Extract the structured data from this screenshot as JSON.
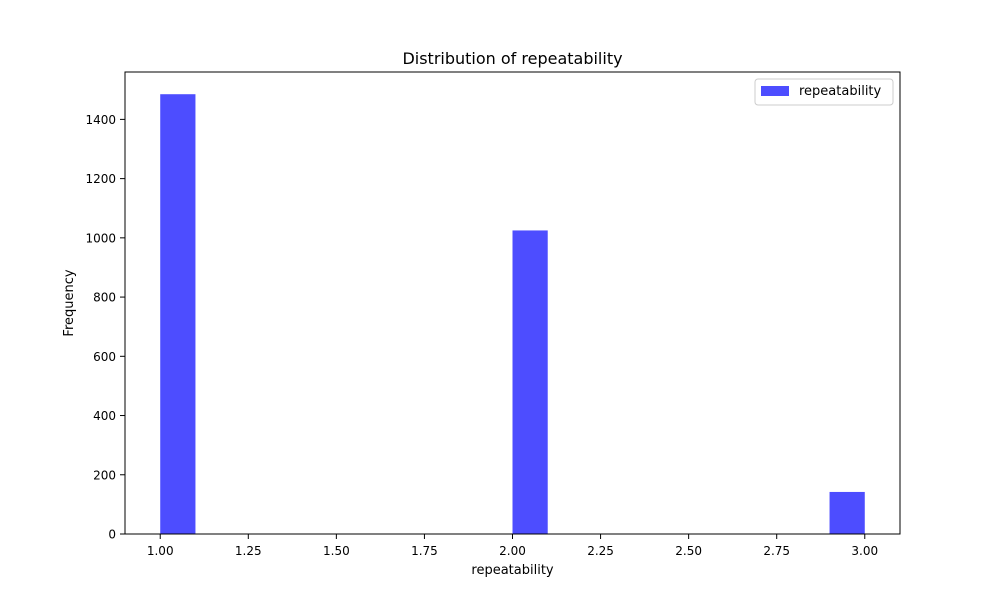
{
  "chart_data": {
    "type": "bar",
    "title": "Distribution of repeatability",
    "xlabel": "repeatability",
    "ylabel": "Frequency",
    "xlim": [
      0.9,
      3.1
    ],
    "ylim": [
      0,
      1560
    ],
    "x_ticks": [
      1.0,
      1.25,
      1.5,
      1.75,
      2.0,
      2.25,
      2.5,
      2.75,
      3.0
    ],
    "x_tick_labels": [
      "1.00",
      "1.25",
      "1.50",
      "1.75",
      "2.00",
      "2.25",
      "2.50",
      "2.75",
      "3.00"
    ],
    "y_ticks": [
      0,
      200,
      400,
      600,
      800,
      1000,
      1200,
      1400
    ],
    "y_tick_labels": [
      "0",
      "200",
      "400",
      "600",
      "800",
      "1000",
      "1200",
      "1400"
    ],
    "bins": [
      {
        "start": 1.0,
        "end": 1.1,
        "value": 1485
      },
      {
        "start": 2.0,
        "end": 2.1,
        "value": 1025
      },
      {
        "start": 2.9,
        "end": 3.0,
        "value": 142
      }
    ],
    "series": [
      {
        "name": "repeatability",
        "color": "#4d4dff"
      }
    ],
    "legend_position": "top-right",
    "grid": false
  }
}
